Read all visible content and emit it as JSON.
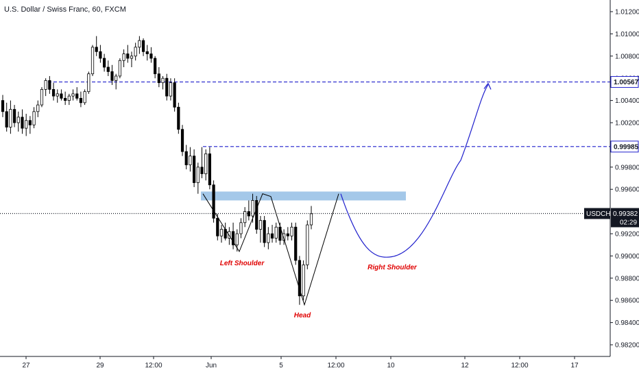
{
  "chart_data": {
    "type": "candlestick",
    "title": "U.S. Dollar / Swiss Franc, 60, FXCM",
    "y_axis": {
      "position": "right",
      "ylim": [
        0.9805,
        1.0125
      ],
      "ticks": [
        "1.01200",
        "1.01000",
        "1.00800",
        "1.00600",
        "1.00400",
        "1.00200",
        "0.99800",
        "0.99600",
        "0.99200",
        "0.99000",
        "0.98800",
        "0.98600",
        "0.98400",
        "0.98200"
      ]
    },
    "x_axis": {
      "ticks": [
        "27",
        "29",
        "12:00",
        "Jun",
        "5",
        "12:00",
        "10",
        "12",
        "12:00",
        "17"
      ]
    },
    "candles": {
      "ohlc": [
        [
          1.004,
          1.0045,
          1.0025,
          1.003
        ],
        [
          1.003,
          1.0038,
          1.0012,
          1.0016
        ],
        [
          1.0016,
          1.004,
          1.001,
          1.0032
        ],
        [
          1.0032,
          1.0036,
          1.0016,
          1.002
        ],
        [
          1.002,
          1.003,
          1.0012,
          1.0025
        ],
        [
          1.0025,
          1.0032,
          1.001,
          1.0015
        ],
        [
          1.0015,
          1.0028,
          1.0008,
          1.0022
        ],
        [
          1.0022,
          1.0026,
          1.001,
          1.0018
        ],
        [
          1.0018,
          1.0034,
          1.0015,
          1.003
        ],
        [
          1.003,
          1.004,
          1.0025,
          1.0036
        ],
        [
          1.0036,
          1.0052,
          1.0034,
          1.005
        ],
        [
          1.005,
          1.006,
          1.0044,
          1.0058
        ],
        [
          1.0058,
          1.0062,
          1.0046,
          1.005
        ],
        [
          1.005,
          1.0056,
          1.004,
          1.0044
        ],
        [
          1.0044,
          1.005,
          1.0038,
          1.0046
        ],
        [
          1.0046,
          1.005,
          1.004,
          1.0042
        ],
        [
          1.0042,
          1.0048,
          1.0036,
          1.004
        ],
        [
          1.004,
          1.0046,
          1.0036,
          1.0044
        ],
        [
          1.0044,
          1.005,
          1.004,
          1.0046
        ],
        [
          1.0046,
          1.0052,
          1.004,
          1.0042
        ],
        [
          1.0042,
          1.0048,
          1.0034,
          1.0038
        ],
        [
          1.0038,
          1.005,
          1.0036,
          1.0048
        ],
        [
          1.0048,
          1.0066,
          1.0046,
          1.0064
        ],
        [
          1.0064,
          1.009,
          1.0062,
          1.0088
        ],
        [
          1.0088,
          1.0098,
          1.008,
          1.0084
        ],
        [
          1.0084,
          1.009,
          1.0074,
          1.0078
        ],
        [
          1.0078,
          1.0082,
          1.0066,
          1.007
        ],
        [
          1.007,
          1.0076,
          1.0062,
          1.0066
        ],
        [
          1.0066,
          1.0072,
          1.0054,
          1.0058
        ],
        [
          1.0058,
          1.0064,
          1.005,
          1.0062
        ],
        [
          1.0062,
          1.0078,
          1.006,
          1.0076
        ],
        [
          1.0076,
          1.0086,
          1.007,
          1.0082
        ],
        [
          1.0082,
          1.009,
          1.0074,
          1.0078
        ],
        [
          1.0078,
          1.0084,
          1.007,
          1.008
        ],
        [
          1.008,
          1.0092,
          1.0076,
          1.0088
        ],
        [
          1.0088,
          1.0098,
          1.0082,
          1.0094
        ],
        [
          1.0094,
          1.0096,
          1.008,
          1.0084
        ],
        [
          1.0084,
          1.009,
          1.0076,
          1.0082
        ],
        [
          1.0082,
          1.0088,
          1.0074,
          1.0078
        ],
        [
          1.0078,
          1.008,
          1.006,
          1.0064
        ],
        [
          1.0064,
          1.007,
          1.0052,
          1.0056
        ],
        [
          1.0056,
          1.0062,
          1.005,
          1.006
        ],
        [
          1.006,
          1.0064,
          1.004,
          1.0044
        ],
        [
          1.0044,
          1.006,
          1.004,
          1.0056
        ],
        [
          1.0056,
          1.006,
          1.003,
          1.0034
        ],
        [
          1.0034,
          1.0038,
          1.001,
          1.0014
        ],
        [
          1.0014,
          1.0018,
          0.999,
          0.9994
        ],
        [
          0.9994,
          1.0,
          0.9978,
          0.9982
        ],
        [
          0.9982,
          0.9998,
          0.9976,
          0.999
        ],
        [
          0.999,
          0.9996,
          0.9962,
          0.9966
        ],
        [
          0.9966,
          0.9984,
          0.9956,
          0.998
        ],
        [
          0.998,
          0.9998,
          0.997,
          0.9974
        ],
        [
          0.9974,
          0.9996,
          0.9968,
          0.9992
        ],
        [
          0.9992,
          0.9998,
          0.996,
          0.9964
        ],
        [
          0.9964,
          0.9968,
          0.993,
          0.9934
        ],
        [
          0.9934,
          0.9938,
          0.9914,
          0.9918
        ],
        [
          0.9918,
          0.9928,
          0.9912,
          0.9924
        ],
        [
          0.9924,
          0.993,
          0.9914,
          0.9916
        ],
        [
          0.9916,
          0.9926,
          0.991,
          0.9922
        ],
        [
          0.9922,
          0.993,
          0.9906,
          0.991
        ],
        [
          0.991,
          0.9924,
          0.9904,
          0.992
        ],
        [
          0.992,
          0.9934,
          0.9916,
          0.993
        ],
        [
          0.993,
          0.9944,
          0.9926,
          0.994
        ],
        [
          0.994,
          0.995,
          0.9932,
          0.9936
        ],
        [
          0.9936,
          0.9956,
          0.993,
          0.995
        ],
        [
          0.995,
          0.9954,
          0.992,
          0.9924
        ],
        [
          0.9924,
          0.9936,
          0.9912,
          0.9932
        ],
        [
          0.9932,
          0.9936,
          0.9908,
          0.9912
        ],
        [
          0.9912,
          0.9926,
          0.9906,
          0.992
        ],
        [
          0.992,
          0.9928,
          0.9912,
          0.9916
        ],
        [
          0.9916,
          0.993,
          0.9912,
          0.9926
        ],
        [
          0.9926,
          0.993,
          0.991,
          0.9914
        ],
        [
          0.9914,
          0.9924,
          0.991,
          0.992
        ],
        [
          0.992,
          0.9926,
          0.9914,
          0.9918
        ],
        [
          0.9918,
          0.993,
          0.9914,
          0.9926
        ],
        [
          0.9926,
          0.993,
          0.9892,
          0.9896
        ],
        [
          0.9896,
          0.99,
          0.9856,
          0.9864
        ],
        [
          0.9864,
          0.9896,
          0.986,
          0.9892
        ],
        [
          0.9892,
          0.9932,
          0.9888,
          0.9928
        ],
        [
          0.9928,
          0.9945,
          0.9924,
          0.9938
        ]
      ],
      "up_color": "#ffffff",
      "down_color": "#000000",
      "border_color": "#000000"
    },
    "horizontal_lines": [
      {
        "value": 1.00567,
        "label": "1.00567",
        "style": "dashed",
        "color": "#1e1ecc"
      },
      {
        "value": 0.99985,
        "label": "0.99985",
        "style": "dashed",
        "color": "#1e1ecc"
      },
      {
        "value": 0.99382,
        "label": "0.99382",
        "style": "dotted",
        "color": "#131722"
      }
    ],
    "zone": {
      "low": 0.995,
      "high": 0.9958,
      "color": "#9fc5e8"
    },
    "price_tag": {
      "symbol": "USDCHF",
      "value": "0.99382",
      "countdown": "02:29",
      "color": "#131722"
    },
    "pattern_labels": [
      "Left Shoulder",
      "Head",
      "Right Shoulder"
    ],
    "pattern_lines": {
      "left_shoulder_price": 0.9904,
      "head_price": 0.9856,
      "neckline_price": 0.9956,
      "projected_low": 0.9899,
      "target_price": 1.00567
    },
    "colors": {
      "pattern_line": "#000000",
      "projection": "#1e1ecc",
      "annotation": "#e00000"
    }
  }
}
